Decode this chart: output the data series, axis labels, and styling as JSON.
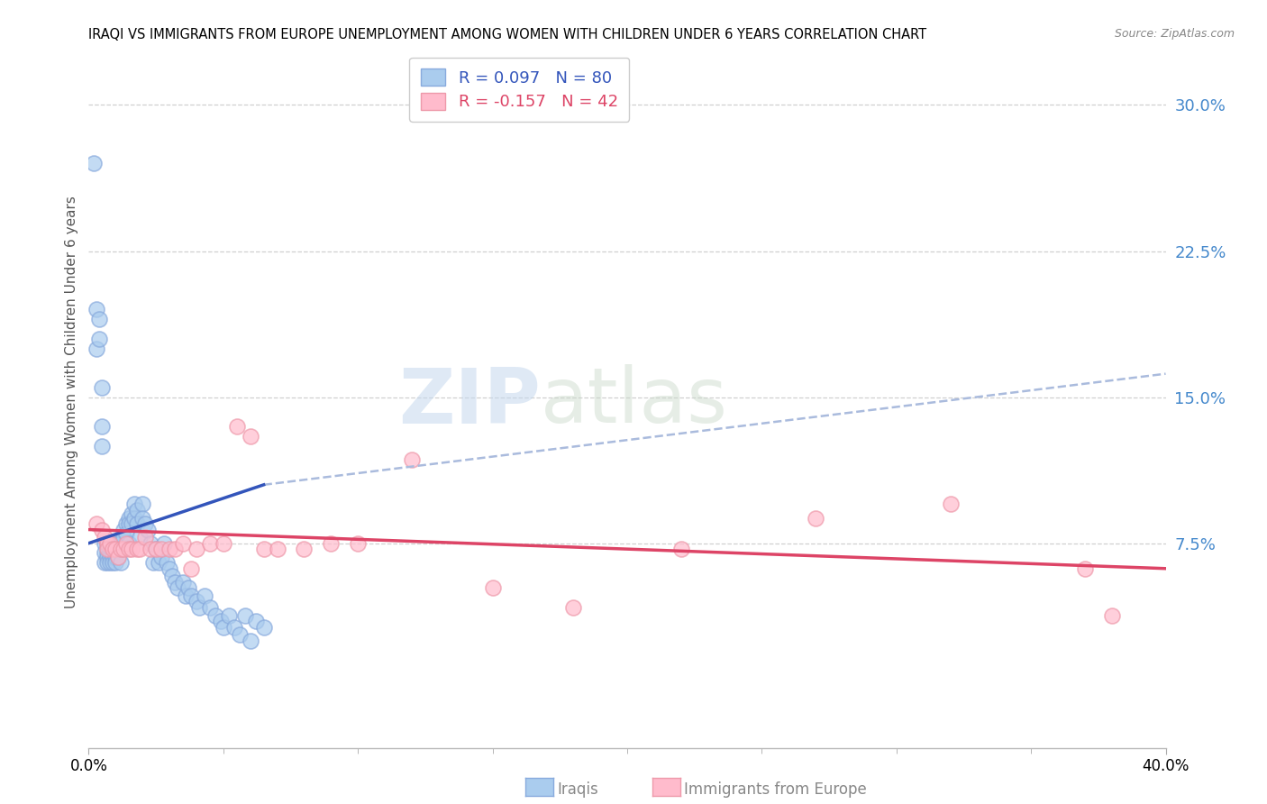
{
  "title": "IRAQI VS IMMIGRANTS FROM EUROPE UNEMPLOYMENT AMONG WOMEN WITH CHILDREN UNDER 6 YEARS CORRELATION CHART",
  "source": "Source: ZipAtlas.com",
  "ylabel": "Unemployment Among Women with Children Under 6 years",
  "xlim": [
    0.0,
    0.4
  ],
  "ylim": [
    -0.03,
    0.325
  ],
  "yticks_right": [
    0.075,
    0.15,
    0.225,
    0.3
  ],
  "yticklabels_right": [
    "7.5%",
    "15.0%",
    "22.5%",
    "30.0%"
  ],
  "xtick_positions": [
    0.0,
    0.4
  ],
  "xticklabels": [
    "0.0%",
    "40.0%"
  ],
  "grid_color": "#d0d0d0",
  "background_color": "#ffffff",
  "iraqi_face_color": "#aaccee",
  "iraqi_edge_color": "#88aadd",
  "immigrant_face_color": "#ffbbcc",
  "immigrant_edge_color": "#ee99aa",
  "iraqi_line_color": "#3355bb",
  "immigrant_line_color": "#dd4466",
  "dashed_line_color": "#aabbdd",
  "legend_iraqi_label": "R = 0.097   N = 80",
  "legend_immigrant_label": "R = -0.157   N = 42",
  "watermark_zip": "ZIP",
  "watermark_atlas": "atlas",
  "iraqi_x": [
    0.002,
    0.003,
    0.003,
    0.004,
    0.004,
    0.005,
    0.005,
    0.005,
    0.006,
    0.006,
    0.006,
    0.007,
    0.007,
    0.007,
    0.007,
    0.008,
    0.008,
    0.008,
    0.008,
    0.009,
    0.009,
    0.009,
    0.01,
    0.01,
    0.01,
    0.01,
    0.011,
    0.011,
    0.011,
    0.012,
    0.012,
    0.012,
    0.013,
    0.013,
    0.013,
    0.014,
    0.014,
    0.015,
    0.015,
    0.015,
    0.016,
    0.016,
    0.017,
    0.017,
    0.018,
    0.018,
    0.019,
    0.02,
    0.02,
    0.021,
    0.022,
    0.023,
    0.024,
    0.025,
    0.026,
    0.027,
    0.028,
    0.029,
    0.03,
    0.031,
    0.032,
    0.033,
    0.035,
    0.036,
    0.037,
    0.038,
    0.04,
    0.041,
    0.043,
    0.045,
    0.047,
    0.049,
    0.05,
    0.052,
    0.054,
    0.056,
    0.058,
    0.06,
    0.062,
    0.065
  ],
  "iraqi_y": [
    0.27,
    0.195,
    0.175,
    0.19,
    0.18,
    0.155,
    0.135,
    0.125,
    0.075,
    0.07,
    0.065,
    0.075,
    0.07,
    0.068,
    0.065,
    0.075,
    0.07,
    0.068,
    0.065,
    0.07,
    0.068,
    0.065,
    0.075,
    0.072,
    0.068,
    0.065,
    0.075,
    0.072,
    0.068,
    0.075,
    0.072,
    0.065,
    0.082,
    0.078,
    0.072,
    0.085,
    0.08,
    0.088,
    0.085,
    0.075,
    0.09,
    0.085,
    0.095,
    0.088,
    0.092,
    0.085,
    0.078,
    0.095,
    0.088,
    0.085,
    0.082,
    0.075,
    0.065,
    0.072,
    0.065,
    0.068,
    0.075,
    0.065,
    0.062,
    0.058,
    0.055,
    0.052,
    0.055,
    0.048,
    0.052,
    0.048,
    0.045,
    0.042,
    0.048,
    0.042,
    0.038,
    0.035,
    0.032,
    0.038,
    0.032,
    0.028,
    0.038,
    0.025,
    0.035,
    0.032
  ],
  "immigrant_x": [
    0.003,
    0.005,
    0.006,
    0.007,
    0.007,
    0.008,
    0.009,
    0.01,
    0.011,
    0.012,
    0.013,
    0.014,
    0.015,
    0.016,
    0.018,
    0.019,
    0.021,
    0.023,
    0.025,
    0.027,
    0.03,
    0.032,
    0.035,
    0.038,
    0.04,
    0.045,
    0.05,
    0.055,
    0.06,
    0.065,
    0.07,
    0.08,
    0.09,
    0.1,
    0.12,
    0.15,
    0.18,
    0.22,
    0.27,
    0.32,
    0.37,
    0.38
  ],
  "immigrant_y": [
    0.085,
    0.082,
    0.078,
    0.075,
    0.072,
    0.075,
    0.072,
    0.072,
    0.068,
    0.072,
    0.072,
    0.075,
    0.072,
    0.072,
    0.072,
    0.072,
    0.078,
    0.072,
    0.072,
    0.072,
    0.072,
    0.072,
    0.075,
    0.062,
    0.072,
    0.075,
    0.075,
    0.135,
    0.13,
    0.072,
    0.072,
    0.072,
    0.075,
    0.075,
    0.118,
    0.052,
    0.042,
    0.072,
    0.088,
    0.095,
    0.062,
    0.038
  ],
  "iraqi_line_x": [
    0.0,
    0.065
  ],
  "iraqi_line_y": [
    0.075,
    0.105
  ],
  "immigrant_line_x": [
    0.0,
    0.4
  ],
  "immigrant_line_y": [
    0.082,
    0.062
  ],
  "dashed_line_x": [
    0.065,
    0.4
  ],
  "dashed_line_y": [
    0.105,
    0.162
  ]
}
